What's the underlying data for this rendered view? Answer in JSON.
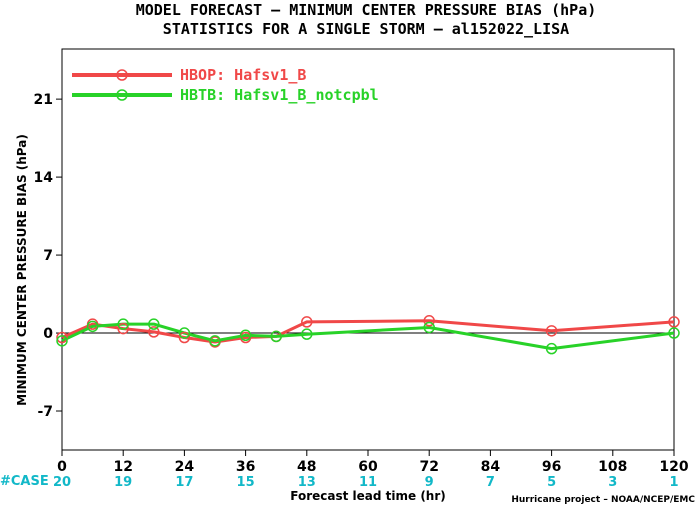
{
  "title_line1": "MODEL FORECAST – MINIMUM CENTER PRESSURE BIAS (hPa)",
  "title_line2": "STATISTICS FOR A SINGLE STORM – al152022_LISA",
  "credit": "Hurricane project – NOAA/NCEP/EMC",
  "case_label": "#CASE",
  "chart_data": {
    "type": "line",
    "xlabel": "Forecast lead time (hr)",
    "ylabel": "MINIMUM CENTER PRESSURE BIAS (hPa)",
    "xlim": [
      0,
      120
    ],
    "ylim": [
      -10.5,
      25.5
    ],
    "x_ticks": [
      0,
      12,
      24,
      36,
      48,
      60,
      72,
      84,
      96,
      108,
      120
    ],
    "y_ticks": [
      -7,
      0,
      7,
      14,
      21
    ],
    "case_counts": [
      "20",
      "19",
      "17",
      "15",
      "13",
      "11",
      "9",
      "7",
      "5",
      "3",
      "1"
    ],
    "zero_line": true,
    "grid": false,
    "legend_position": "top-left",
    "series": [
      {
        "name": "HBOP: Hafsv1_B",
        "color": "#f04848",
        "x": [
          0,
          6,
          12,
          18,
          24,
          30,
          36,
          42,
          48,
          72,
          96,
          120
        ],
        "y": [
          -0.4,
          0.8,
          0.4,
          0.1,
          -0.4,
          -0.8,
          -0.4,
          -0.3,
          1.0,
          1.1,
          0.2,
          1.0
        ]
      },
      {
        "name": "HBTB: Hafsv1_B_notcpbl",
        "color": "#28d228",
        "x": [
          0,
          6,
          12,
          18,
          24,
          30,
          36,
          42,
          48,
          72,
          96,
          120
        ],
        "y": [
          -0.7,
          0.6,
          0.8,
          0.8,
          0.0,
          -0.7,
          -0.2,
          -0.3,
          -0.1,
          0.5,
          -1.4,
          0.0
        ]
      }
    ]
  }
}
